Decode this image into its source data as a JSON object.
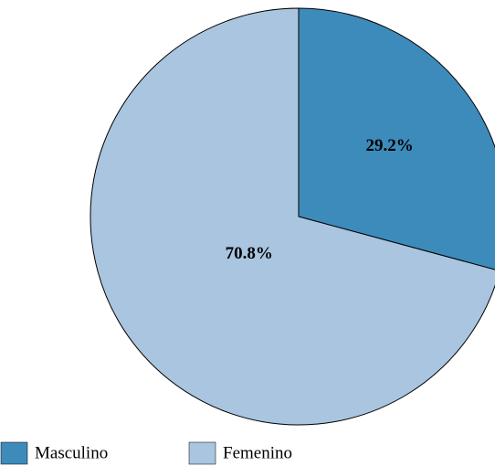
{
  "chart_data": {
    "type": "pie",
    "categories": [
      "Masculino",
      "Femenino"
    ],
    "values": [
      29.2,
      70.8
    ],
    "value_labels": [
      "29.2%",
      "70.8%"
    ],
    "colors": [
      "#3d8bbb",
      "#a9c5e0"
    ],
    "legend": "bottom"
  }
}
